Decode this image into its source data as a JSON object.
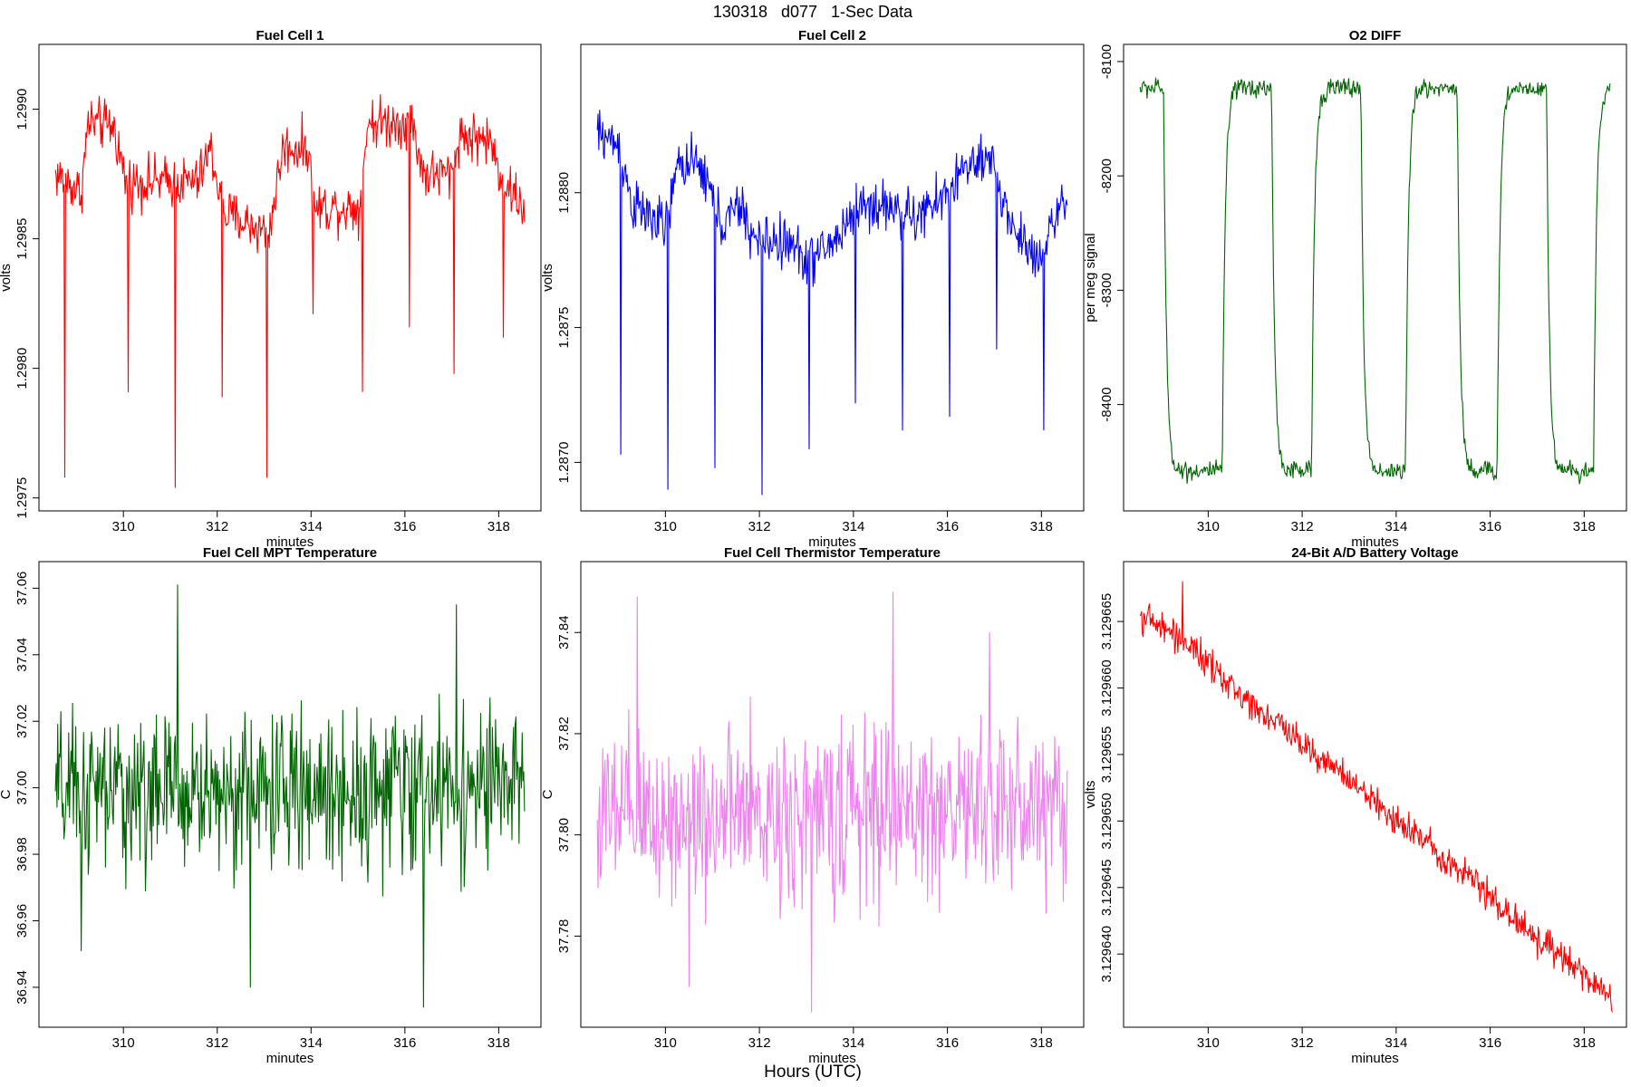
{
  "figure": {
    "title": "130318   d077   1-Sec Data",
    "bottom_label": "Hours (UTC)"
  },
  "chart_data": [
    {
      "type": "line",
      "title": "Fuel Cell 1",
      "xlabel": "minutes",
      "ylabel": "volts",
      "color": "#ff0000",
      "xlim": [
        308.2,
        318.9
      ],
      "ylim": [
        1.29745,
        1.29925
      ],
      "xticks": [
        310,
        312,
        314,
        316,
        318
      ],
      "xtick_labels": [
        "310",
        "312",
        "314",
        "316",
        "318"
      ],
      "yticks": [
        1.2975,
        1.298,
        1.2985,
        1.299
      ],
      "ytick_labels": [
        "1.2975",
        "1.2980",
        "1.2985",
        "1.2990"
      ],
      "series": {
        "x_start": 308.55,
        "x_end": 318.55,
        "n": 600,
        "segments": [
          [
            308.55,
            1.29875
          ],
          [
            309.1,
            1.29868
          ],
          [
            309.25,
            1.29895
          ],
          [
            309.8,
            1.29893
          ],
          [
            310.05,
            1.29872
          ],
          [
            311.6,
            1.29872
          ],
          [
            311.85,
            1.29885
          ],
          [
            312.15,
            1.2986
          ],
          [
            313.1,
            1.29852
          ],
          [
            313.4,
            1.29885
          ],
          [
            313.95,
            1.29885
          ],
          [
            314.05,
            1.29862
          ],
          [
            315.05,
            1.29862
          ],
          [
            315.2,
            1.29895
          ],
          [
            316.15,
            1.29895
          ],
          [
            316.4,
            1.29875
          ],
          [
            317.0,
            1.29875
          ],
          [
            317.15,
            1.2989
          ],
          [
            317.8,
            1.29888
          ],
          [
            318.1,
            1.29872
          ],
          [
            318.55,
            1.29862
          ]
        ],
        "noise": 9e-05,
        "spikes": [
          [
            308.75,
            1.29758
          ],
          [
            310.1,
            1.29791
          ],
          [
            311.1,
            1.29754
          ],
          [
            312.1,
            1.29789
          ],
          [
            313.05,
            1.29758
          ],
          [
            314.05,
            1.29821
          ],
          [
            315.1,
            1.29791
          ],
          [
            316.1,
            1.29816
          ],
          [
            317.05,
            1.29798
          ],
          [
            318.1,
            1.29812
          ]
        ]
      }
    },
    {
      "type": "line",
      "title": "Fuel Cell 2",
      "xlabel": "minutes",
      "ylabel": "volts",
      "color": "#0000ff",
      "xlim": [
        308.2,
        318.9
      ],
      "ylim": [
        1.28682,
        1.28855
      ],
      "xticks": [
        310,
        312,
        314,
        316,
        318
      ],
      "xtick_labels": [
        "310",
        "312",
        "314",
        "316",
        "318"
      ],
      "yticks": [
        1.287,
        1.2875,
        1.288
      ],
      "ytick_labels": [
        "1.2870",
        "1.2875",
        "1.2880"
      ],
      "series": {
        "x_start": 308.55,
        "x_end": 318.55,
        "n": 600,
        "segments": [
          [
            308.55,
            1.28822
          ],
          [
            309.0,
            1.28818
          ],
          [
            309.3,
            1.28795
          ],
          [
            310.0,
            1.28787
          ],
          [
            310.3,
            1.28812
          ],
          [
            310.8,
            1.28808
          ],
          [
            311.2,
            1.28788
          ],
          [
            311.6,
            1.28795
          ],
          [
            311.9,
            1.28782
          ],
          [
            312.5,
            1.28782
          ],
          [
            313.1,
            1.28775
          ],
          [
            313.6,
            1.28782
          ],
          [
            314.1,
            1.28795
          ],
          [
            314.8,
            1.28795
          ],
          [
            315.3,
            1.2879
          ],
          [
            315.9,
            1.28798
          ],
          [
            316.4,
            1.2881
          ],
          [
            317.0,
            1.2881
          ],
          [
            317.3,
            1.2879
          ],
          [
            317.9,
            1.28775
          ],
          [
            318.25,
            1.2879
          ],
          [
            318.55,
            1.28795
          ]
        ],
        "noise": 9e-05,
        "spikes": [
          [
            309.05,
            1.28703
          ],
          [
            310.05,
            1.2869
          ],
          [
            311.05,
            1.28698
          ],
          [
            312.05,
            1.28688
          ],
          [
            313.05,
            1.28705
          ],
          [
            314.05,
            1.28722
          ],
          [
            315.05,
            1.28712
          ],
          [
            316.05,
            1.28717
          ],
          [
            317.05,
            1.28742
          ],
          [
            318.05,
            1.28712
          ]
        ]
      }
    },
    {
      "type": "line",
      "title": "O2 DIFF",
      "xlabel": "minutes",
      "ylabel": "per meg signal",
      "color": "#006400",
      "xlim": [
        308.2,
        318.9
      ],
      "ylim": [
        -8493,
        -8085
      ],
      "xticks": [
        310,
        312,
        314,
        316,
        318
      ],
      "xtick_labels": [
        "310",
        "312",
        "314",
        "316",
        "318"
      ],
      "yticks": [
        -8400,
        -8300,
        -8200,
        -8100
      ],
      "ytick_labels": [
        "-8400",
        "-8300",
        "-8200",
        "-8100"
      ],
      "series": {
        "x_start": 308.55,
        "x_end": 318.55,
        "n": 600,
        "square_wave": {
          "high": -8123,
          "low": -8458,
          "transitions": [
            309.05,
            310.3,
            311.35,
            312.2,
            313.25,
            314.2,
            315.3,
            316.15,
            317.2,
            318.2
          ]
        },
        "noise": 8,
        "spikes": []
      }
    },
    {
      "type": "line",
      "title": "Fuel Cell MPT Temperature",
      "xlabel": "minutes",
      "ylabel": "C",
      "color": "#006400",
      "xlim": [
        308.2,
        318.9
      ],
      "ylim": [
        36.928,
        37.068
      ],
      "xticks": [
        310,
        312,
        314,
        316,
        318
      ],
      "xtick_labels": [
        "310",
        "312",
        "314",
        "316",
        "318"
      ],
      "yticks": [
        36.94,
        36.96,
        36.98,
        37.0,
        37.02,
        37.04,
        37.06
      ],
      "ytick_labels": [
        "36.94",
        "36.96",
        "36.98",
        "37.00",
        "37.02",
        "37.04",
        "37.06"
      ],
      "series": {
        "x_start": 308.55,
        "x_end": 318.55,
        "n": 600,
        "segments": [
          [
            308.55,
            36.998
          ],
          [
            318.55,
            37.0
          ]
        ],
        "noise": 0.022,
        "spikes": [
          [
            311.15,
            37.061
          ],
          [
            316.4,
            36.934
          ],
          [
            312.7,
            36.94
          ],
          [
            317.1,
            37.055
          ],
          [
            309.1,
            36.951
          ]
        ]
      }
    },
    {
      "type": "line",
      "title": "Fuel Cell Thermistor Temperature",
      "xlabel": "minutes",
      "ylabel": "C",
      "color": "#ee82ee",
      "xlim": [
        308.2,
        318.9
      ],
      "ylim": [
        37.762,
        37.854
      ],
      "xticks": [
        310,
        312,
        314,
        316,
        318
      ],
      "xtick_labels": [
        "310",
        "312",
        "314",
        "316",
        "318"
      ],
      "yticks": [
        37.78,
        37.8,
        37.82,
        37.84
      ],
      "ytick_labels": [
        "37.78",
        "37.80",
        "37.82",
        "37.84"
      ],
      "series": {
        "x_start": 308.55,
        "x_end": 318.55,
        "n": 600,
        "segments": [
          [
            308.55,
            37.803
          ],
          [
            318.55,
            37.806
          ]
        ],
        "noise": 0.016,
        "spikes": [
          [
            309.4,
            37.847
          ],
          [
            313.1,
            37.765
          ],
          [
            314.85,
            37.848
          ],
          [
            310.5,
            37.77
          ],
          [
            316.9,
            37.84
          ]
        ]
      }
    },
    {
      "type": "line",
      "title": "24-Bit A/D Battery Voltage",
      "xlabel": "minutes",
      "ylabel": "volts",
      "color": "#ff0000",
      "xlim": [
        308.2,
        318.9
      ],
      "ylim": [
        3.1296345,
        3.1296695
      ],
      "xticks": [
        310,
        312,
        314,
        316,
        318
      ],
      "xtick_labels": [
        "310",
        "312",
        "314",
        "316",
        "318"
      ],
      "yticks": [
        3.12964,
        3.129645,
        3.12965,
        3.129655,
        3.12966,
        3.129665
      ],
      "ytick_labels": [
        "3.129640",
        "3.129645",
        "3.129650",
        "3.129655",
        "3.129660",
        "3.129665"
      ],
      "series": {
        "x_start": 308.55,
        "x_end": 318.6,
        "n": 600,
        "segments": [
          [
            308.55,
            3.1296655
          ],
          [
            309.5,
            3.1296635
          ],
          [
            310.5,
            3.12966
          ],
          [
            311.5,
            3.1296573
          ],
          [
            312.5,
            3.1296545
          ],
          [
            313.5,
            3.1296515
          ],
          [
            314.5,
            3.1296488
          ],
          [
            315.5,
            3.129646
          ],
          [
            316.5,
            3.1296427
          ],
          [
            317.5,
            3.1296397
          ],
          [
            318.6,
            3.1296367
          ]
        ],
        "noise": 1.1e-06,
        "spikes": [
          [
            309.45,
            3.129668
          ]
        ]
      }
    }
  ]
}
